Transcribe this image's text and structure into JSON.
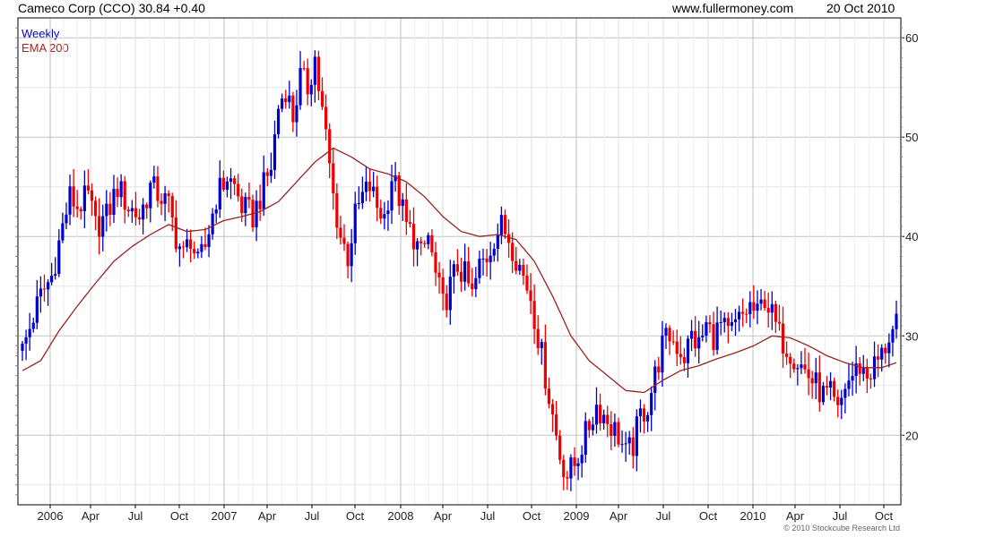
{
  "header": {
    "title": "Cameco Corp (CCO) 30.84 +0.40",
    "site": "www.fullermoney.com",
    "date": "20 Oct 2010"
  },
  "legend": {
    "series": "Weekly",
    "ema": "EMA 200"
  },
  "copyright": "© 2010 Stockcube Research Ltd",
  "colors": {
    "up": "#0000cc",
    "down": "#ee0000",
    "ema": "#992222",
    "grid": "#d8d8d8"
  },
  "chart_data": {
    "type": "line",
    "ylim": [
      13,
      62
    ],
    "yticks": [
      20,
      30,
      40,
      50,
      60
    ],
    "grid": true,
    "x_ticks": [
      "2006",
      "Apr",
      "Jul",
      "Oct",
      "2007",
      "Apr",
      "Jul",
      "Oct",
      "2008",
      "Apr",
      "Jul",
      "Oct",
      "2009",
      "Apr",
      "Jul",
      "Oct",
      "2010",
      "Apr",
      "Jul",
      "Oct"
    ],
    "price_anchors": [
      [
        0,
        28.5
      ],
      [
        3,
        32
      ],
      [
        5,
        34
      ],
      [
        8,
        36
      ],
      [
        11,
        41
      ],
      [
        13,
        44
      ],
      [
        15,
        43
      ],
      [
        18,
        44
      ],
      [
        20,
        41
      ],
      [
        23,
        42
      ],
      [
        26,
        45
      ],
      [
        29,
        43
      ],
      [
        32,
        42
      ],
      [
        35,
        45
      ],
      [
        38,
        44
      ],
      [
        40,
        43
      ],
      [
        42,
        40
      ],
      [
        44,
        38
      ],
      [
        46,
        40
      ],
      [
        48,
        37
      ],
      [
        50,
        39
      ],
      [
        53,
        44
      ],
      [
        56,
        46
      ],
      [
        58,
        45
      ],
      [
        60,
        43
      ],
      [
        63,
        42
      ],
      [
        65,
        44
      ],
      [
        68,
        47
      ],
      [
        70,
        53
      ],
      [
        72,
        55
      ],
      [
        74,
        52
      ],
      [
        76,
        56
      ],
      [
        78,
        55
      ],
      [
        80,
        58
      ],
      [
        81,
        55
      ],
      [
        83,
        50
      ],
      [
        85,
        44
      ],
      [
        87,
        40
      ],
      [
        89,
        38
      ],
      [
        91,
        42
      ],
      [
        93,
        44
      ],
      [
        95,
        45
      ],
      [
        97,
        43
      ],
      [
        99,
        42
      ],
      [
        101,
        46
      ],
      [
        103,
        44
      ],
      [
        105,
        41
      ],
      [
        107,
        40
      ],
      [
        109,
        38
      ],
      [
        111,
        40
      ],
      [
        113,
        36
      ],
      [
        115,
        33
      ],
      [
        117,
        35
      ],
      [
        119,
        37
      ],
      [
        121,
        36
      ],
      [
        123,
        34
      ],
      [
        125,
        37
      ],
      [
        127,
        38
      ],
      [
        129,
        40
      ],
      [
        131,
        41
      ],
      [
        133,
        40
      ],
      [
        135,
        38
      ],
      [
        137,
        36
      ],
      [
        139,
        34
      ],
      [
        141,
        30
      ],
      [
        143,
        26
      ],
      [
        145,
        22
      ],
      [
        147,
        18
      ],
      [
        149,
        16
      ],
      [
        151,
        17
      ],
      [
        153,
        19
      ],
      [
        155,
        21
      ],
      [
        157,
        23
      ],
      [
        159,
        22
      ],
      [
        161,
        21
      ],
      [
        163,
        20
      ],
      [
        165,
        18
      ],
      [
        167,
        19
      ],
      [
        169,
        22
      ],
      [
        171,
        23
      ],
      [
        173,
        26
      ],
      [
        175,
        29
      ],
      [
        177,
        30
      ],
      [
        179,
        29
      ],
      [
        181,
        28
      ],
      [
        183,
        30
      ],
      [
        185,
        29
      ],
      [
        187,
        31
      ],
      [
        189,
        30
      ],
      [
        191,
        31
      ],
      [
        193,
        30
      ],
      [
        195,
        31
      ],
      [
        197,
        32
      ],
      [
        199,
        33
      ],
      [
        201,
        32
      ],
      [
        203,
        34
      ],
      [
        205,
        32
      ],
      [
        207,
        30
      ],
      [
        209,
        29
      ],
      [
        211,
        28
      ],
      [
        213,
        27
      ],
      [
        215,
        26
      ],
      [
        217,
        25
      ],
      [
        219,
        24
      ],
      [
        221,
        24
      ],
      [
        223,
        22
      ],
      [
        225,
        25
      ],
      [
        227,
        26
      ],
      [
        229,
        27
      ],
      [
        231,
        26
      ],
      [
        233,
        27
      ],
      [
        235,
        28
      ],
      [
        237,
        30
      ],
      [
        239,
        30.84
      ]
    ],
    "ema_anchors": [
      [
        0,
        26.5
      ],
      [
        5,
        27.5
      ],
      [
        10,
        30.5
      ],
      [
        15,
        33.0
      ],
      [
        20,
        35.3
      ],
      [
        25,
        37.5
      ],
      [
        30,
        39.0
      ],
      [
        35,
        40.2
      ],
      [
        40,
        41.2
      ],
      [
        45,
        40.5
      ],
      [
        50,
        40.7
      ],
      [
        55,
        41.6
      ],
      [
        60,
        42.0
      ],
      [
        65,
        42.5
      ],
      [
        70,
        43.5
      ],
      [
        75,
        45.5
      ],
      [
        80,
        47.5
      ],
      [
        85,
        48.9
      ],
      [
        90,
        48.0
      ],
      [
        95,
        46.8
      ],
      [
        100,
        46.3
      ],
      [
        105,
        45.5
      ],
      [
        110,
        44.0
      ],
      [
        115,
        42.0
      ],
      [
        120,
        40.5
      ],
      [
        125,
        40.0
      ],
      [
        130,
        40.2
      ],
      [
        135,
        39.7
      ],
      [
        140,
        37.5
      ],
      [
        145,
        34.0
      ],
      [
        150,
        30.0
      ],
      [
        155,
        27.5
      ],
      [
        160,
        26.0
      ],
      [
        165,
        24.5
      ],
      [
        170,
        24.3
      ],
      [
        175,
        25.5
      ],
      [
        180,
        26.5
      ],
      [
        185,
        27.0
      ],
      [
        190,
        27.7
      ],
      [
        195,
        28.3
      ],
      [
        200,
        29.0
      ],
      [
        205,
        30.0
      ],
      [
        210,
        29.8
      ],
      [
        215,
        29.0
      ],
      [
        220,
        28.0
      ],
      [
        225,
        27.3
      ],
      [
        230,
        26.8
      ],
      [
        235,
        26.8
      ],
      [
        239,
        27.3
      ]
    ]
  }
}
